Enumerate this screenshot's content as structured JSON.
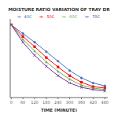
{
  "chart_data": {
    "type": "line",
    "title": "MOISTURE RATIO VARIATION OF TRAY DR",
    "x_label": "TIME (MINUTE)",
    "x": [
      0,
      60,
      120,
      180,
      240,
      300,
      360,
      420,
      480
    ],
    "series": [
      {
        "name": "40C",
        "color": "#4472C4",
        "marker": "o",
        "values": [
          1.0,
          0.88,
          0.76,
          0.63,
          0.5,
          0.37,
          0.27,
          0.2,
          0.16
        ]
      },
      {
        "name": "50C",
        "color": "#FF0000",
        "marker": "s",
        "values": [
          1.0,
          0.84,
          0.7,
          0.55,
          0.42,
          0.3,
          0.21,
          0.15,
          0.13
        ]
      },
      {
        "name": "60C",
        "color": "#70AD47",
        "marker": "^",
        "values": [
          1.0,
          0.8,
          0.64,
          0.49,
          0.36,
          0.25,
          0.17,
          0.13,
          0.11
        ]
      },
      {
        "name": "70C",
        "color": "#7030A0",
        "marker": "x",
        "values": [
          1.0,
          0.76,
          0.58,
          0.43,
          0.3,
          0.2,
          0.14,
          0.11,
          0.09
        ]
      }
    ],
    "xlim": [
      -5,
      495
    ],
    "ylim": [
      0.0,
      1.08
    ],
    "xticks": [
      0,
      60,
      120,
      180,
      240,
      300,
      360,
      420,
      480
    ],
    "grid": false,
    "legend": "upper right",
    "tick_labels": "x"
  }
}
